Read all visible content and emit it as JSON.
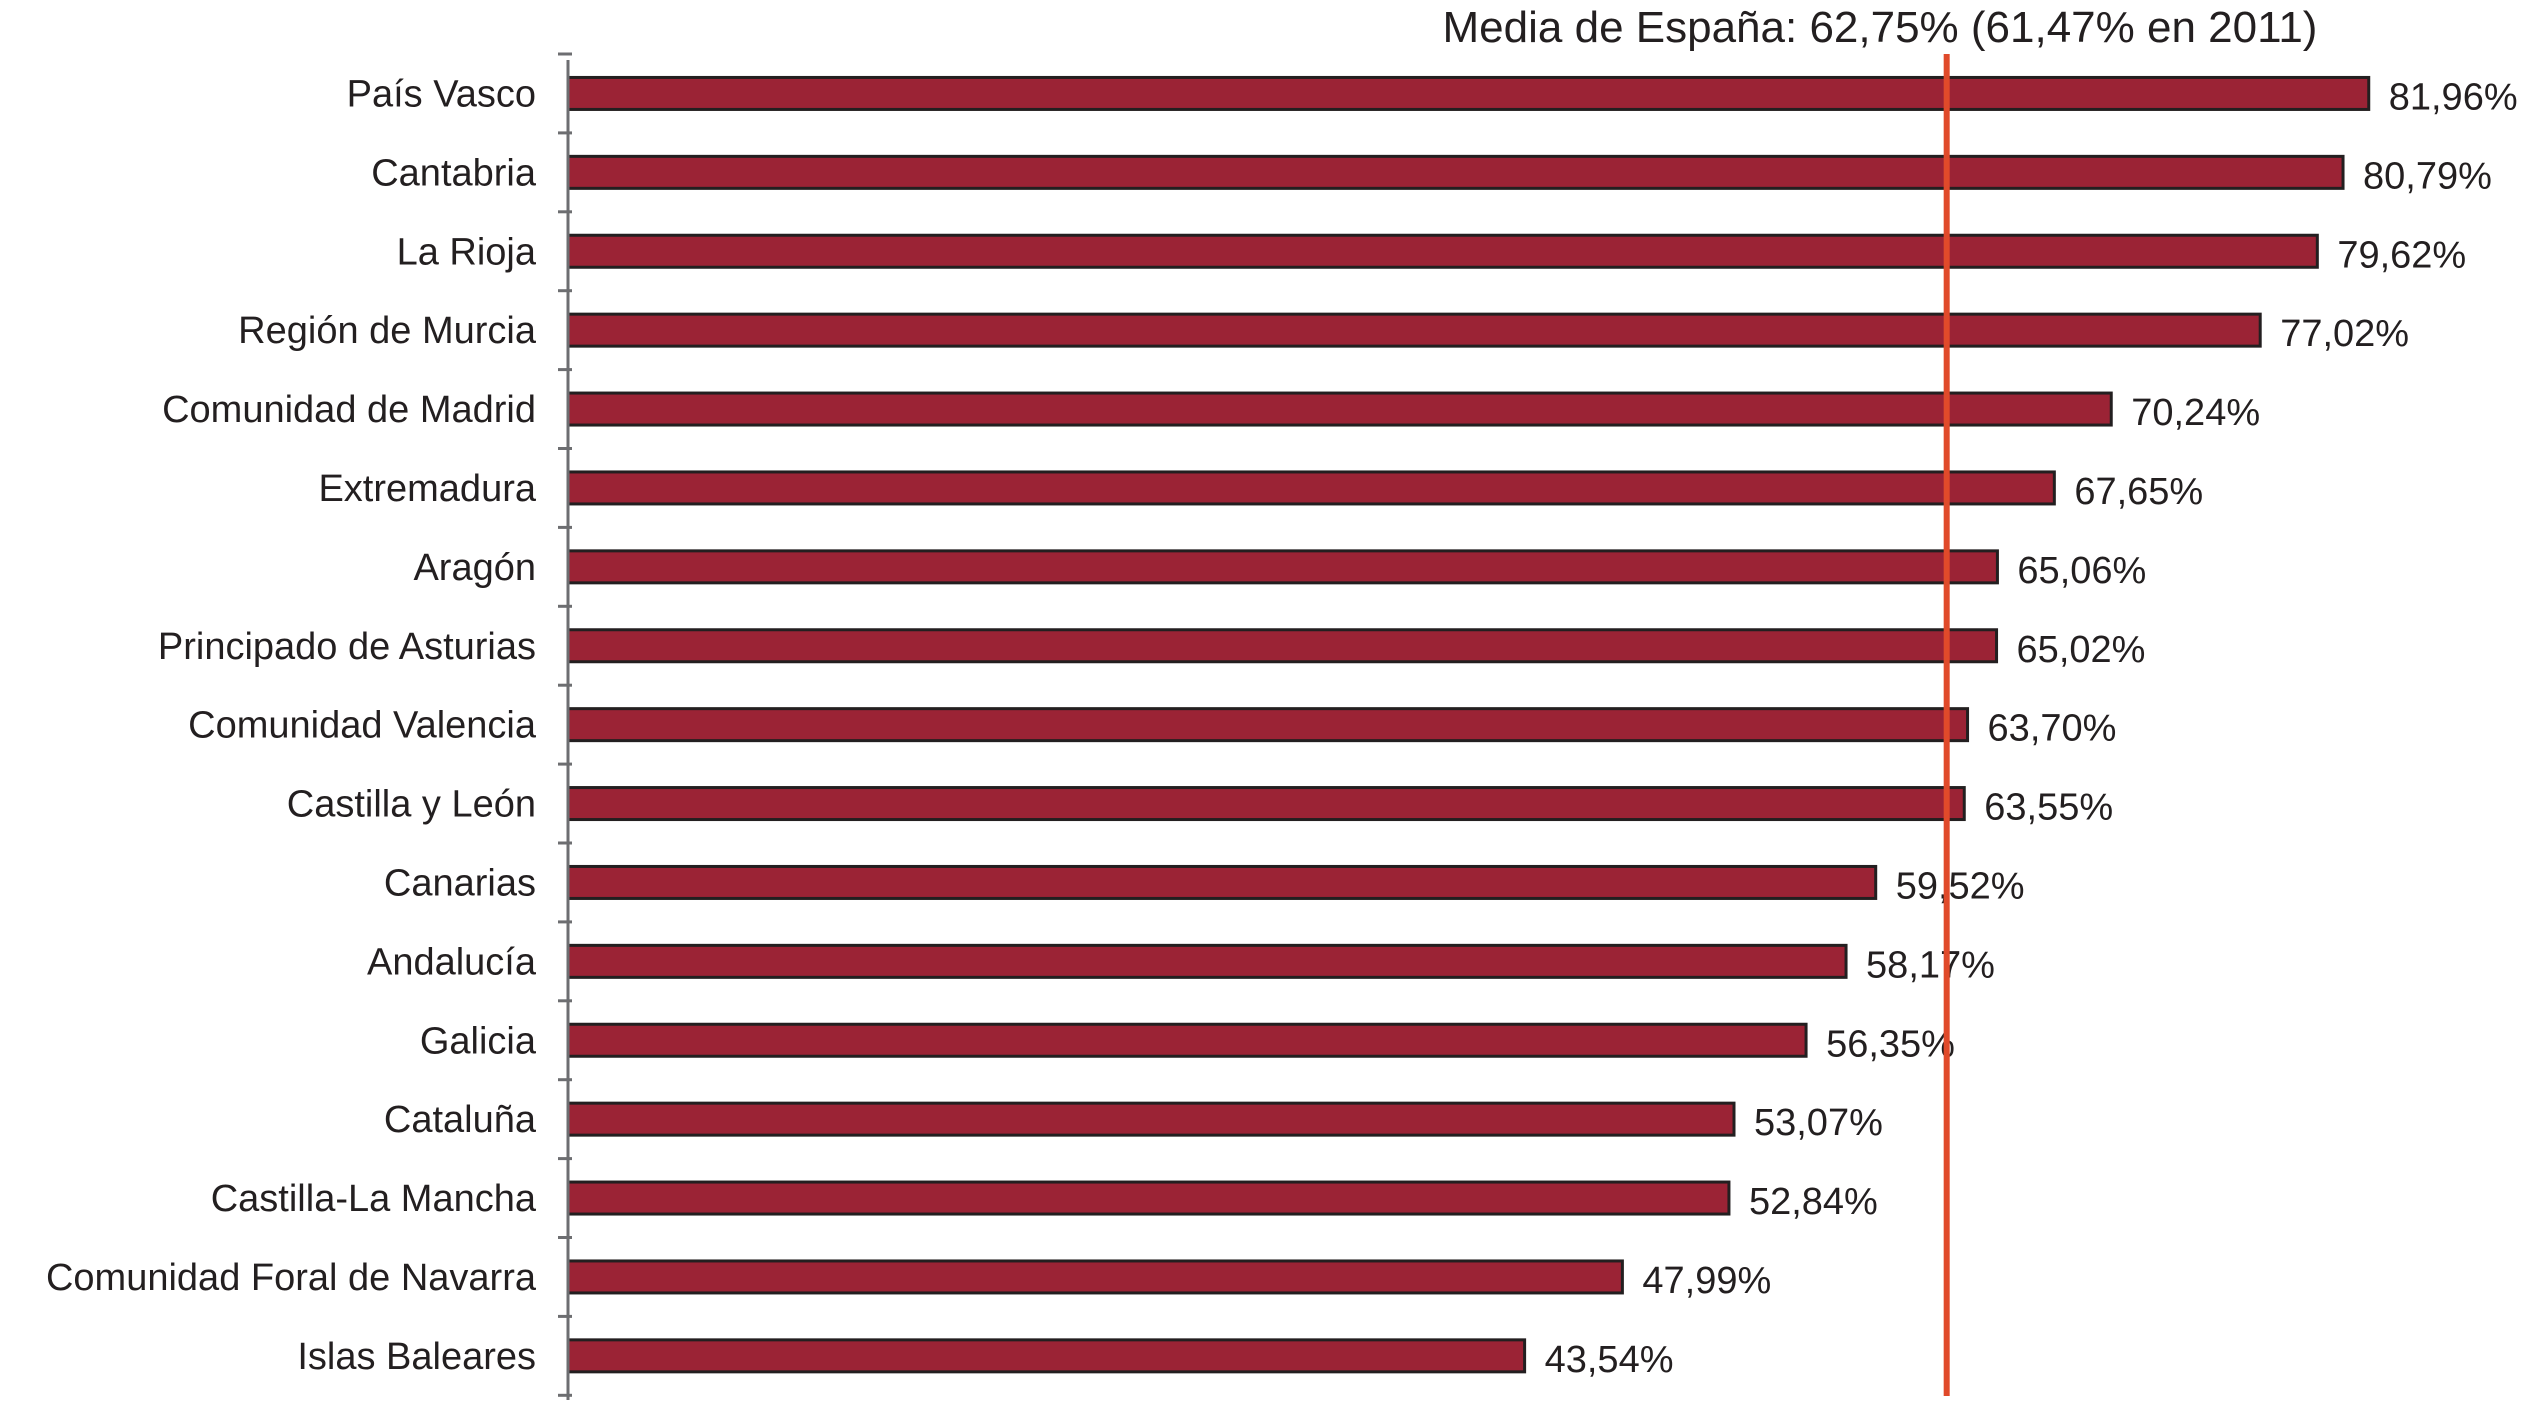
{
  "chart_data": {
    "type": "bar",
    "orientation": "horizontal",
    "categories": [
      "País Vasco",
      "Cantabria",
      "La Rioja",
      "Región de Murcia",
      "Comunidad de Madrid",
      "Extremadura",
      "Aragón",
      "Principado de Asturias",
      "Comunidad Valencia",
      "Castilla y León",
      "Canarias",
      "Andalucía",
      "Galicia",
      "Cataluña",
      "Castilla-La Mancha",
      "Comunidad Foral de Navarra",
      "Islas Baleares"
    ],
    "values": [
      81.96,
      80.79,
      79.62,
      77.02,
      70.24,
      67.65,
      65.06,
      65.02,
      63.7,
      63.55,
      59.52,
      58.17,
      56.35,
      53.07,
      52.84,
      47.99,
      43.54
    ],
    "value_labels": [
      "81,96%",
      "80,79%",
      "79,62%",
      "77,02%",
      "70,24%",
      "67,65%",
      "65,06%",
      "65,02%",
      "63,70%",
      "63,55%",
      "59,52%",
      "58,17%",
      "56,35%",
      "53,07%",
      "52,84%",
      "47,99%",
      "43,54%"
    ],
    "xlim": [
      0,
      82.7
    ],
    "reference_line": {
      "value": 62.75,
      "label": "Media de España: 62,75%  (61,47% en 2011)"
    },
    "grid": false,
    "legend": "none",
    "colors": {
      "bar": "#9b2335",
      "bar_outline": "#231f20",
      "reference_line": "#e04a2a",
      "axis": "#6d6e71"
    }
  }
}
